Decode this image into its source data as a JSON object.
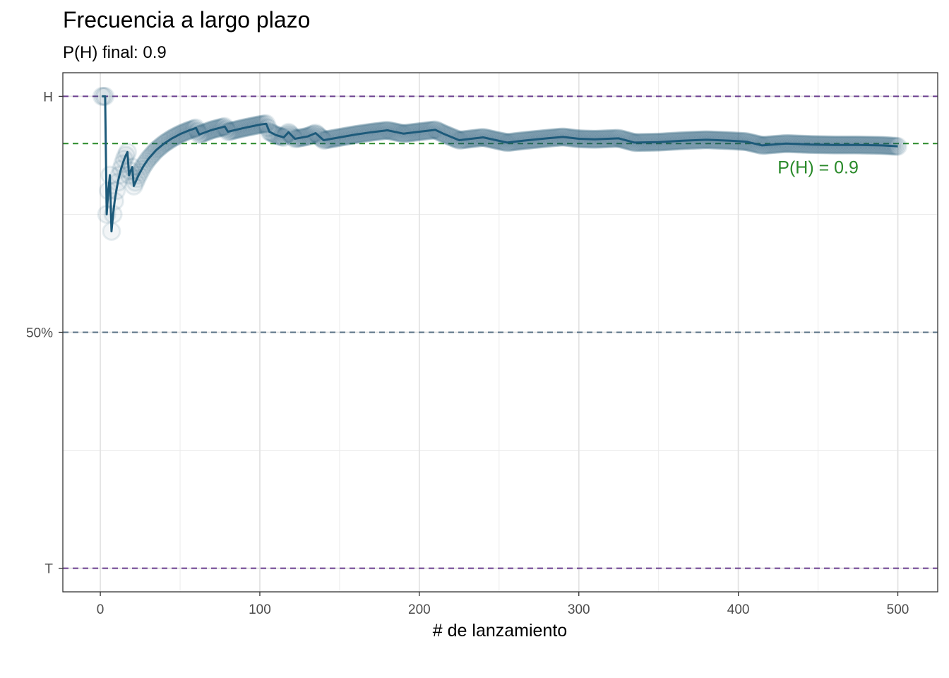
{
  "chart_data": {
    "type": "line",
    "title": "Frecuencia a largo plazo",
    "subtitle": "P(H) final: 0.9",
    "xlabel": "# de lanzamiento",
    "ylabel": "",
    "xlim": [
      -23.5,
      525
    ],
    "ylim": [
      -0.05,
      1.05
    ],
    "x_ticks": [
      0,
      100,
      200,
      300,
      400,
      500
    ],
    "y_ticks": [
      {
        "value": 0,
        "label": "T"
      },
      {
        "value": 0.5,
        "label": "50%"
      },
      {
        "value": 1,
        "label": "H"
      }
    ],
    "y_minor_gridlines": [
      0.25,
      0.75
    ],
    "x_minor_gridlines": [
      50,
      150,
      250,
      350,
      450
    ],
    "grid": true,
    "reference_lines": [
      {
        "y": 1,
        "color": "#6b3f8f"
      },
      {
        "y": 0,
        "color": "#6b3f8f"
      },
      {
        "y": 0.5,
        "color": "#5a7185"
      },
      {
        "y": 0.9,
        "color": "#2a8a2a"
      }
    ],
    "annotation": {
      "text": "P(H) =  0.9",
      "x": 450,
      "y": 0.85,
      "color": "#2a8a2a"
    },
    "series": [
      {
        "color": "#1d5a7a",
        "points": [
          [
            1,
            1.0
          ],
          [
            2,
            1.0
          ],
          [
            3,
            1.0
          ],
          [
            4,
            0.75
          ],
          [
            5,
            0.8
          ],
          [
            6,
            0.833
          ],
          [
            7,
            0.714
          ],
          [
            8,
            0.75
          ],
          [
            9,
            0.778
          ],
          [
            10,
            0.8
          ],
          [
            11,
            0.818
          ],
          [
            12,
            0.833
          ],
          [
            13,
            0.846
          ],
          [
            14,
            0.857
          ],
          [
            15,
            0.867
          ],
          [
            16,
            0.875
          ],
          [
            17,
            0.882
          ],
          [
            18,
            0.833
          ],
          [
            19,
            0.842
          ],
          [
            20,
            0.85
          ],
          [
            21,
            0.81
          ],
          [
            22,
            0.818
          ],
          [
            24,
            0.833
          ],
          [
            27,
            0.852
          ],
          [
            30,
            0.867
          ],
          [
            35,
            0.886
          ],
          [
            40,
            0.9
          ],
          [
            45,
            0.911
          ],
          [
            50,
            0.92
          ],
          [
            55,
            0.927
          ],
          [
            60,
            0.933
          ],
          [
            62,
            0.919
          ],
          [
            70,
            0.929
          ],
          [
            78,
            0.936
          ],
          [
            80,
            0.925
          ],
          [
            90,
            0.933
          ],
          [
            100,
            0.94
          ],
          [
            104,
            0.942
          ],
          [
            106,
            0.925
          ],
          [
            110,
            0.918
          ],
          [
            115,
            0.913
          ],
          [
            118,
            0.924
          ],
          [
            122,
            0.91
          ],
          [
            130,
            0.915
          ],
          [
            135,
            0.922
          ],
          [
            140,
            0.907
          ],
          [
            150,
            0.913
          ],
          [
            160,
            0.919
          ],
          [
            170,
            0.924
          ],
          [
            180,
            0.928
          ],
          [
            190,
            0.921
          ],
          [
            200,
            0.925
          ],
          [
            210,
            0.929
          ],
          [
            215,
            0.921
          ],
          [
            225,
            0.907
          ],
          [
            240,
            0.913
          ],
          [
            255,
            0.902
          ],
          [
            265,
            0.906
          ],
          [
            280,
            0.911
          ],
          [
            290,
            0.914
          ],
          [
            300,
            0.91
          ],
          [
            310,
            0.909
          ],
          [
            325,
            0.911
          ],
          [
            335,
            0.902
          ],
          [
            350,
            0.903
          ],
          [
            365,
            0.906
          ],
          [
            380,
            0.908
          ],
          [
            395,
            0.906
          ],
          [
            405,
            0.904
          ],
          [
            415,
            0.896
          ],
          [
            430,
            0.9
          ],
          [
            445,
            0.898
          ],
          [
            460,
            0.897
          ],
          [
            475,
            0.897
          ],
          [
            490,
            0.896
          ],
          [
            500,
            0.894
          ]
        ]
      }
    ]
  }
}
